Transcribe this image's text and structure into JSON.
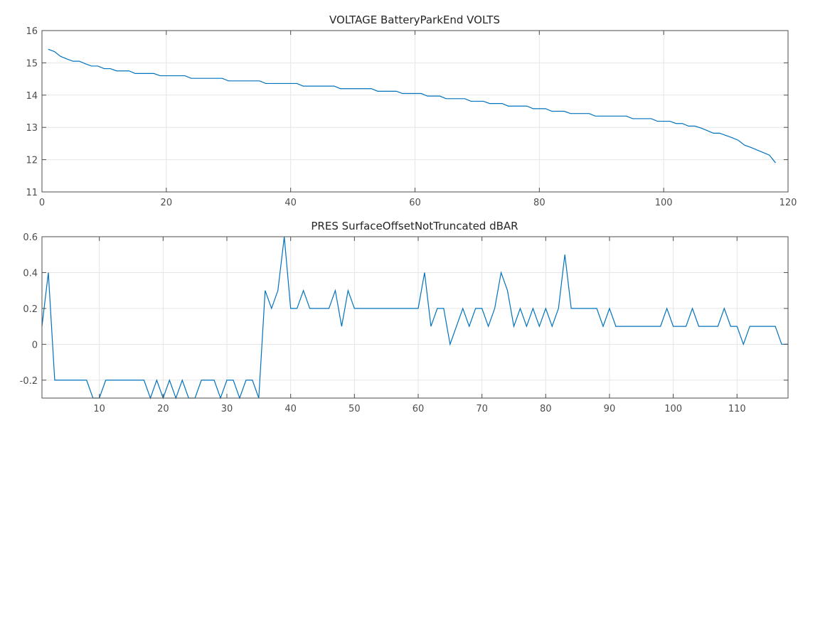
{
  "chart_data": [
    {
      "type": "line",
      "title": "VOLTAGE BatteryParkEnd VOLTS",
      "xlim": [
        0,
        120
      ],
      "ylim": [
        11,
        16
      ],
      "xticks": [
        0,
        20,
        40,
        60,
        80,
        100,
        120
      ],
      "yticks": [
        11,
        12,
        13,
        14,
        15,
        16
      ],
      "x_tick_labels": [
        "0",
        "20",
        "40",
        "60",
        "80",
        "100",
        "120"
      ],
      "y_tick_labels": [
        "11",
        "12",
        "13",
        "14",
        "15",
        "16"
      ],
      "grid": true,
      "series": [
        {
          "color": "#0072bd",
          "x": [
            1,
            2,
            3,
            4,
            5,
            6,
            7,
            8,
            9,
            10,
            11,
            12,
            13,
            14,
            15,
            16,
            17,
            18,
            19,
            20,
            21,
            22,
            23,
            24,
            25,
            26,
            27,
            28,
            29,
            30,
            31,
            32,
            33,
            34,
            35,
            36,
            37,
            38,
            39,
            40,
            41,
            42,
            43,
            44,
            45,
            46,
            47,
            48,
            49,
            50,
            51,
            52,
            53,
            54,
            55,
            56,
            57,
            58,
            59,
            60,
            61,
            62,
            63,
            64,
            65,
            66,
            67,
            68,
            69,
            70,
            71,
            72,
            73,
            74,
            75,
            76,
            77,
            78,
            79,
            80,
            81,
            82,
            83,
            84,
            85,
            86,
            87,
            88,
            89,
            90,
            91,
            92,
            93,
            94,
            95,
            96,
            97,
            98,
            99,
            100,
            101,
            102,
            103,
            104,
            105,
            106,
            107,
            108,
            109,
            110,
            111,
            112,
            113,
            114,
            115,
            116,
            117,
            118
          ],
          "y": [
            15.42,
            15.35,
            15.2,
            15.12,
            15.05,
            15.05,
            14.97,
            14.9,
            14.9,
            14.82,
            14.82,
            14.75,
            14.75,
            14.75,
            14.67,
            14.67,
            14.67,
            14.67,
            14.6,
            14.6,
            14.6,
            14.6,
            14.6,
            14.52,
            14.52,
            14.52,
            14.52,
            14.52,
            14.52,
            14.44,
            14.44,
            14.44,
            14.44,
            14.44,
            14.44,
            14.36,
            14.36,
            14.36,
            14.36,
            14.36,
            14.36,
            14.28,
            14.28,
            14.28,
            14.28,
            14.28,
            14.28,
            14.2,
            14.2,
            14.2,
            14.2,
            14.2,
            14.2,
            14.12,
            14.12,
            14.12,
            14.12,
            14.05,
            14.05,
            14.05,
            14.05,
            13.97,
            13.97,
            13.97,
            13.89,
            13.89,
            13.89,
            13.89,
            13.81,
            13.81,
            13.81,
            13.74,
            13.74,
            13.74,
            13.66,
            13.66,
            13.66,
            13.66,
            13.58,
            13.58,
            13.58,
            13.5,
            13.5,
            13.5,
            13.43,
            13.43,
            13.43,
            13.43,
            13.35,
            13.35,
            13.35,
            13.35,
            13.35,
            13.35,
            13.27,
            13.27,
            13.27,
            13.27,
            13.19,
            13.19,
            13.19,
            13.12,
            13.12,
            13.04,
            13.04,
            12.98,
            12.9,
            12.82,
            12.82,
            12.75,
            12.68,
            12.6,
            12.45,
            12.38,
            12.3,
            12.22,
            12.14,
            11.9
          ]
        }
      ]
    },
    {
      "type": "line",
      "title": "PRES SurfaceOffsetNotTruncated dBAR",
      "xlim": [
        1,
        118
      ],
      "ylim": [
        -0.3,
        0.6
      ],
      "xticks": [
        10,
        20,
        30,
        40,
        50,
        60,
        70,
        80,
        90,
        100,
        110
      ],
      "yticks": [
        -0.2,
        0,
        0.2,
        0.4,
        0.6
      ],
      "x_tick_labels": [
        "10",
        "20",
        "30",
        "40",
        "50",
        "60",
        "70",
        "80",
        "90",
        "100",
        "110"
      ],
      "y_tick_labels": [
        "-0.2",
        "0",
        "0.2",
        "0.4",
        "0.6"
      ],
      "grid": true,
      "series": [
        {
          "color": "#0072bd",
          "x": [
            1,
            2,
            3,
            4,
            5,
            6,
            7,
            8,
            9,
            10,
            11,
            12,
            13,
            14,
            15,
            16,
            17,
            18,
            19,
            20,
            21,
            22,
            23,
            24,
            25,
            26,
            27,
            28,
            29,
            30,
            31,
            32,
            33,
            34,
            35,
            36,
            37,
            38,
            39,
            40,
            41,
            42,
            43,
            44,
            45,
            46,
            47,
            48,
            49,
            50,
            51,
            52,
            53,
            54,
            55,
            56,
            57,
            58,
            59,
            60,
            61,
            62,
            63,
            64,
            65,
            66,
            67,
            68,
            69,
            70,
            71,
            72,
            73,
            74,
            75,
            76,
            77,
            78,
            79,
            80,
            81,
            82,
            83,
            84,
            85,
            86,
            87,
            88,
            89,
            90,
            91,
            92,
            93,
            94,
            95,
            96,
            97,
            98,
            99,
            100,
            101,
            102,
            103,
            104,
            105,
            106,
            107,
            108,
            109,
            110,
            111,
            112,
            113,
            114,
            115,
            116,
            117,
            118
          ],
          "y": [
            0.1,
            0.4,
            -0.2,
            -0.2,
            -0.2,
            -0.2,
            -0.2,
            -0.2,
            -0.3,
            -0.3,
            -0.2,
            -0.2,
            -0.2,
            -0.2,
            -0.2,
            -0.2,
            -0.2,
            -0.3,
            -0.2,
            -0.3,
            -0.2,
            -0.3,
            -0.2,
            -0.3,
            -0.3,
            -0.2,
            -0.2,
            -0.2,
            -0.3,
            -0.2,
            -0.2,
            -0.3,
            -0.2,
            -0.2,
            -0.3,
            0.3,
            0.2,
            0.3,
            0.6,
            0.2,
            0.2,
            0.3,
            0.2,
            0.2,
            0.2,
            0.2,
            0.3,
            0.1,
            0.3,
            0.2,
            0.2,
            0.2,
            0.2,
            0.2,
            0.2,
            0.2,
            0.2,
            0.2,
            0.2,
            0.2,
            0.4,
            0.1,
            0.2,
            0.2,
            0.0,
            0.1,
            0.2,
            0.1,
            0.2,
            0.2,
            0.1,
            0.2,
            0.4,
            0.3,
            0.1,
            0.2,
            0.1,
            0.2,
            0.1,
            0.2,
            0.1,
            0.2,
            0.5,
            0.2,
            0.2,
            0.2,
            0.2,
            0.2,
            0.1,
            0.2,
            0.1,
            0.1,
            0.1,
            0.1,
            0.1,
            0.1,
            0.1,
            0.1,
            0.2,
            0.1,
            0.1,
            0.1,
            0.2,
            0.1,
            0.1,
            0.1,
            0.1,
            0.2,
            0.1,
            0.1,
            0.0,
            0.1,
            0.1,
            0.1,
            0.1,
            0.1,
            0.0,
            0.0
          ]
        }
      ]
    }
  ]
}
